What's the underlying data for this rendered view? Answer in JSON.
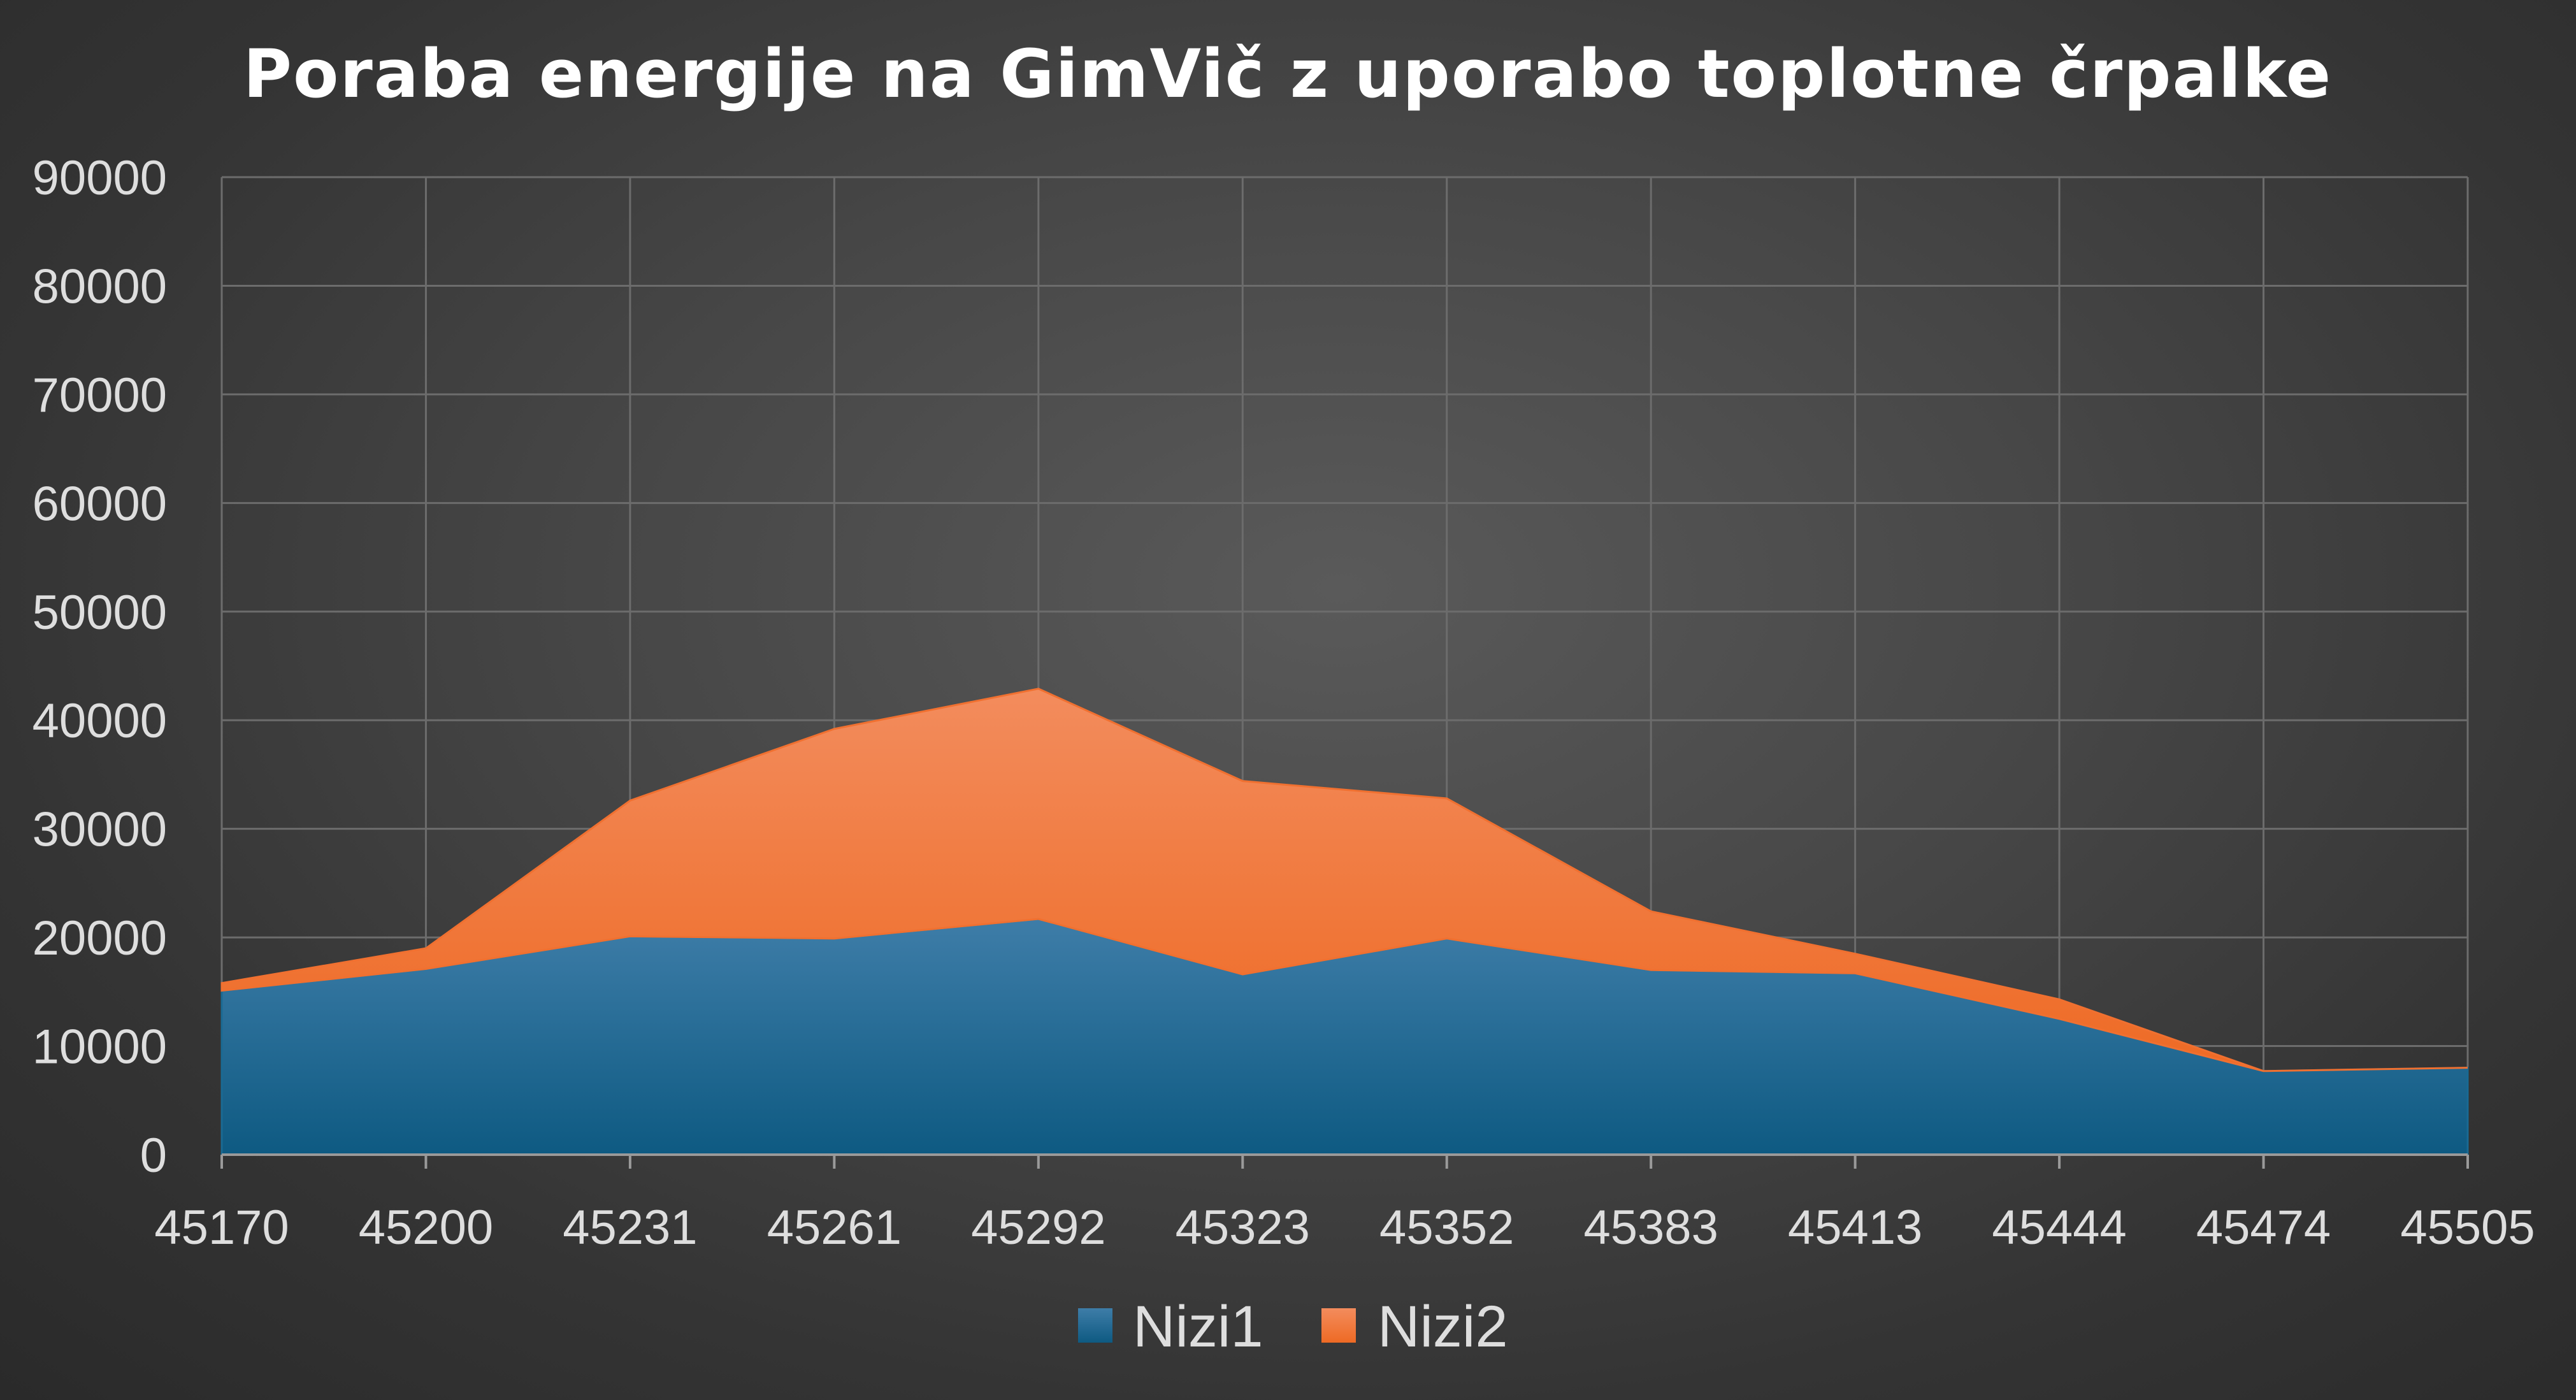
{
  "chart_data": {
    "type": "area",
    "stacked": true,
    "title": "Poraba energije na GimVič z uporabo toplotne črpalke",
    "xlabel": "",
    "ylabel": "",
    "categories": [
      "45170",
      "45200",
      "45231",
      "45261",
      "45292",
      "45323",
      "45352",
      "45383",
      "45413",
      "45444",
      "45474",
      "45505"
    ],
    "series": [
      {
        "name": "Nizi1",
        "color": "#1a6a93",
        "values": [
          15100,
          17100,
          20100,
          19900,
          21700,
          16600,
          19900,
          17000,
          16700,
          12500,
          7700,
          8000
        ]
      },
      {
        "name": "Nizi2",
        "color": "#f07030",
        "values": [
          700,
          1900,
          12500,
          19300,
          21200,
          17800,
          12900,
          5400,
          1800,
          1800,
          0,
          0
        ]
      }
    ],
    "ylim": [
      0,
      90000
    ],
    "yticks": [
      "0",
      "10000",
      "20000",
      "30000",
      "40000",
      "50000",
      "60000",
      "70000",
      "80000",
      "90000"
    ],
    "grid": true,
    "legend_position": "bottom"
  }
}
